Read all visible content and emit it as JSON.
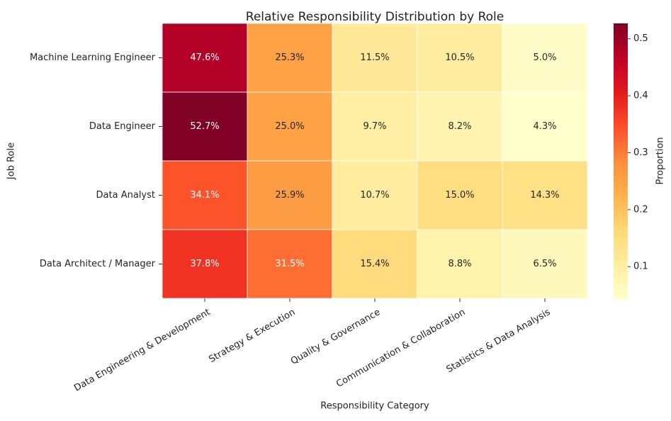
{
  "chart_data": {
    "type": "heatmap",
    "title": "Relative Responsibility Distribution by Role",
    "xlabel": "Responsibility Category",
    "ylabel": "Job Role",
    "columns": [
      "Data Engineering & Development",
      "Strategy & Execution",
      "Quality & Governance",
      "Communication & Collaboration",
      "Statistics & Data Analysis"
    ],
    "rows": [
      "Machine Learning Engineer",
      "Data Engineer",
      "Data Analyst",
      "Data Architect / Manager"
    ],
    "values": [
      [
        0.476,
        0.253,
        0.115,
        0.105,
        0.05
      ],
      [
        0.527,
        0.25,
        0.097,
        0.082,
        0.043
      ],
      [
        0.341,
        0.259,
        0.107,
        0.15,
        0.143
      ],
      [
        0.378,
        0.315,
        0.154,
        0.088,
        0.065
      ]
    ],
    "cell_labels": [
      [
        "47.6%",
        "25.3%",
        "11.5%",
        "10.5%",
        "5.0%"
      ],
      [
        "52.7%",
        "25.0%",
        "9.7%",
        "8.2%",
        "4.3%"
      ],
      [
        "34.1%",
        "25.9%",
        "10.7%",
        "15.0%",
        "14.3%"
      ],
      [
        "37.8%",
        "31.5%",
        "15.4%",
        "8.8%",
        "6.5%"
      ]
    ],
    "colorbar": {
      "label": "Proportion",
      "colormap": "YlOrRd",
      "vmin": 0.043,
      "vmax": 0.527,
      "ticks": [
        0.1,
        0.2,
        0.3,
        0.4,
        0.5
      ],
      "tick_labels": [
        "0.1",
        "0.2",
        "0.3",
        "0.4",
        "0.5"
      ]
    }
  }
}
